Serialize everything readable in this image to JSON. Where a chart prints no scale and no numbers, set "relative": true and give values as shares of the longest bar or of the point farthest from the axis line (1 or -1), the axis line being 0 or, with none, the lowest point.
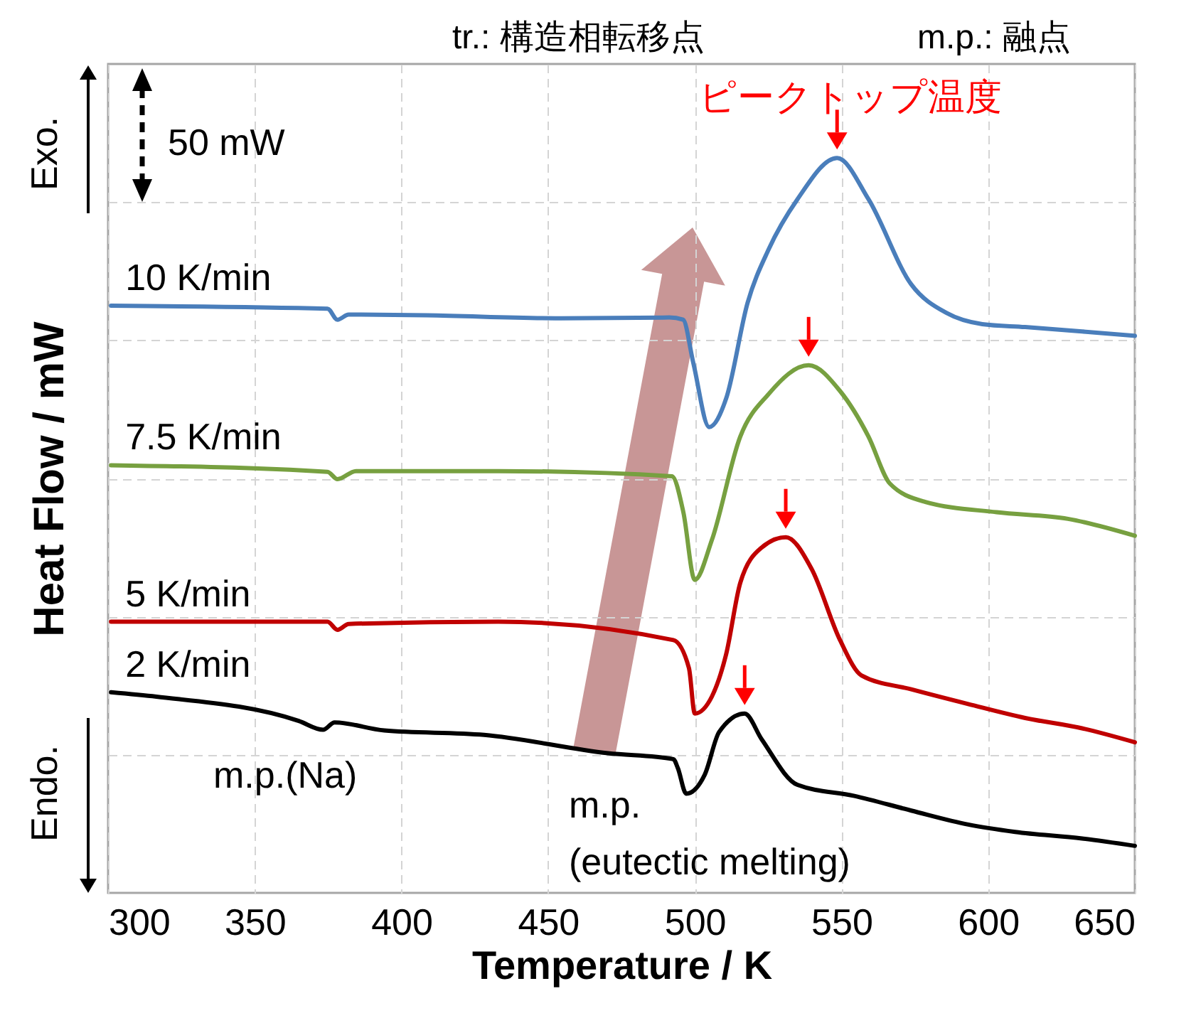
{
  "chart_data": {
    "type": "line",
    "relative": true,
    "xlabel": "Temperature / K",
    "ylabel": "Heat Flow / mW",
    "xlim": [
      300,
      650
    ],
    "xticks": [
      300,
      350,
      400,
      450,
      500,
      550,
      600,
      650
    ],
    "grid": true,
    "annotations": [
      "tr.: 構造相転移点",
      "m.p.: 融点",
      "50 mW",
      "Exo.",
      "Endo.",
      "ピークトップ温度",
      "m.p.(Na)",
      "m.p.\n(eutectic melting)"
    ],
    "series": [
      {
        "name": "10 K/min",
        "color": "#4a7ebb",
        "x": [
          301,
          374.8,
          378.2,
          382,
          408.7,
          452.4,
          491.3,
          496,
          499.5,
          504.9,
          510.7,
          518,
          525.2,
          535,
          548.5,
          559.2,
          573.8,
          585.9,
          598,
          612.6,
          632,
          650
        ],
        "values": [
          0.799,
          0.795,
          0.78,
          0.787,
          0.786,
          0.782,
          0.783,
          0.78,
          0.721,
          0.634,
          0.673,
          0.803,
          0.876,
          0.944,
          1,
          0.944,
          0.828,
          0.789,
          0.774,
          0.77,
          0.764,
          0.758
        ]
      },
      {
        "name": "7.5 K/min",
        "color": "#77a040",
        "x": [
          301,
          374.8,
          378.2,
          384.5,
          433,
          492.2,
          496.1,
          500,
          505.8,
          515.5,
          525.2,
          538.8,
          549.5,
          559.2,
          566.5,
          578.6,
          602.9,
          627.2,
          650
        ],
        "values": [
          0.582,
          0.573,
          0.563,
          0.574,
          0.574,
          0.567,
          0.518,
          0.426,
          0.48,
          0.621,
          0.679,
          0.718,
          0.683,
          0.621,
          0.557,
          0.532,
          0.518,
          0.509,
          0.486
        ]
      },
      {
        "name": "5 K/min",
        "color": "#c00000",
        "x": [
          301,
          374.8,
          378.2,
          382,
          433,
          492.7,
          498,
          500,
          505.8,
          510.7,
          515.5,
          522.8,
          531,
          539.8,
          549.5,
          556.8,
          573.8,
          593.2,
          612.6,
          632,
          650
        ],
        "values": [
          0.369,
          0.369,
          0.358,
          0.366,
          0.369,
          0.344,
          0.306,
          0.244,
          0.267,
          0.325,
          0.422,
          0.47,
          0.484,
          0.441,
          0.344,
          0.296,
          0.277,
          0.257,
          0.238,
          0.224,
          0.205
        ]
      },
      {
        "name": "2 K/min",
        "color": "#000000",
        "x": [
          301,
          316.5,
          365,
          373.3,
          377.2,
          394.2,
          428.2,
          470.4,
          492.7,
          494.2,
          497.1,
          503.4,
          508.3,
          517,
          522.8,
          535,
          554.4,
          573.8,
          593.2,
          609.2,
          632,
          650
        ],
        "values": [
          0.273,
          0.267,
          0.234,
          0.222,
          0.232,
          0.221,
          0.215,
          0.19,
          0.182,
          0.17,
          0.135,
          0.161,
          0.219,
          0.244,
          0.209,
          0.147,
          0.132,
          0.112,
          0.093,
          0.083,
          0.074,
          0.064
        ]
      }
    ]
  }
}
